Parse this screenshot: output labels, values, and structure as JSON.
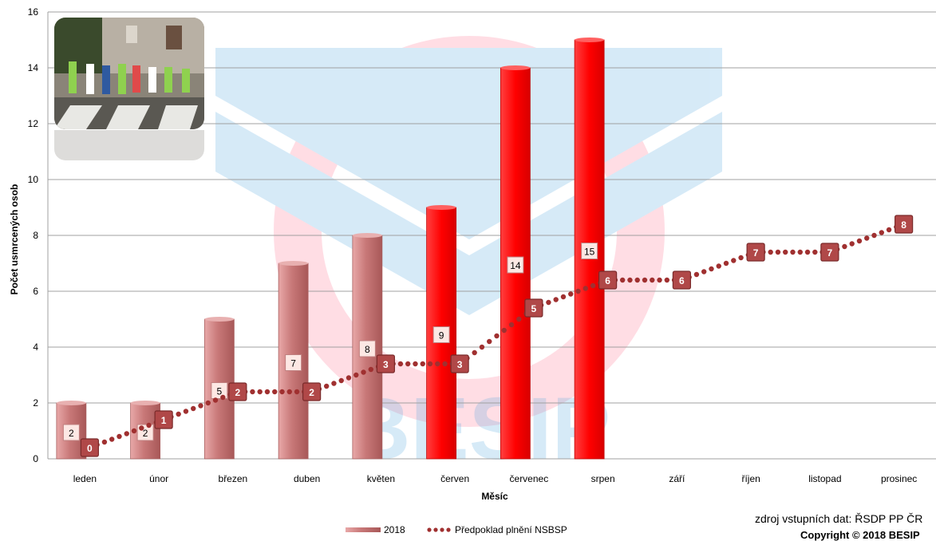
{
  "chart_data": {
    "type": "bar",
    "categories": [
      "leden",
      "únor",
      "březen",
      "duben",
      "květen",
      "červen",
      "červenec",
      "srpen",
      "září",
      "říjen",
      "listopad",
      "prosinec"
    ],
    "series": [
      {
        "name": "2018",
        "kind": "bar",
        "values": [
          2,
          2,
          5,
          7,
          8,
          9,
          14,
          15,
          null,
          null,
          null,
          null
        ],
        "colors": [
          "#c87878",
          "#c87878",
          "#c87878",
          "#c87878",
          "#c87878",
          "#ff0000",
          "#ff0000",
          "#ff0000"
        ]
      },
      {
        "name": "Předpoklad plnění NSBSP",
        "kind": "line-dotted",
        "values": [
          0,
          1,
          2,
          2,
          3,
          3,
          5,
          6,
          6,
          7,
          7,
          8
        ],
        "color": "#a03030"
      }
    ],
    "xlabel": "Měsíc",
    "ylabel": "Počet usmrcených osob",
    "ylim": [
      0,
      16
    ],
    "yticks": [
      0,
      2,
      4,
      6,
      8,
      10,
      12,
      14,
      16
    ],
    "grid": true,
    "legend_position": "bottom"
  },
  "source_text": "zdroj vstupních dat: ŘSDP PP ČR",
  "copyright_text": "Copyright © 2018 BESIP",
  "watermark_text": "BESIP"
}
